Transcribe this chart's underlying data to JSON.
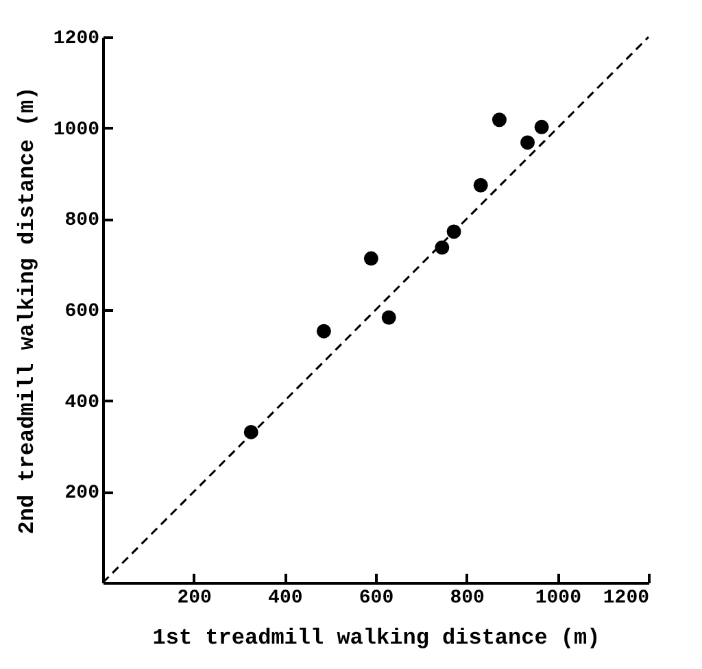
{
  "chart_data": {
    "type": "scatter",
    "xlabel": "1st treadmill walking distance (m)",
    "ylabel": "2nd treadmill walking distance (m)",
    "xlim": [
      0,
      1200
    ],
    "ylim": [
      0,
      1200
    ],
    "xticks": [
      200,
      400,
      600,
      800,
      1000,
      1200
    ],
    "yticks": [
      200,
      400,
      600,
      800,
      1000,
      1200
    ],
    "grid": false,
    "series": [
      {
        "color": "#000000",
        "marker": "circle",
        "x": [
          326,
          486,
          590,
          629,
          746,
          772,
          831,
          872,
          934,
          965
        ],
        "values": [
          331,
          553,
          713,
          583,
          737,
          772,
          874,
          1018,
          968,
          1002
        ]
      },
      {
        "type": "line",
        "color": "#000000",
        "line_style": "dashed",
        "marker": "none",
        "x": [
          0,
          1200
        ],
        "values": [
          0,
          1200
        ]
      }
    ]
  }
}
